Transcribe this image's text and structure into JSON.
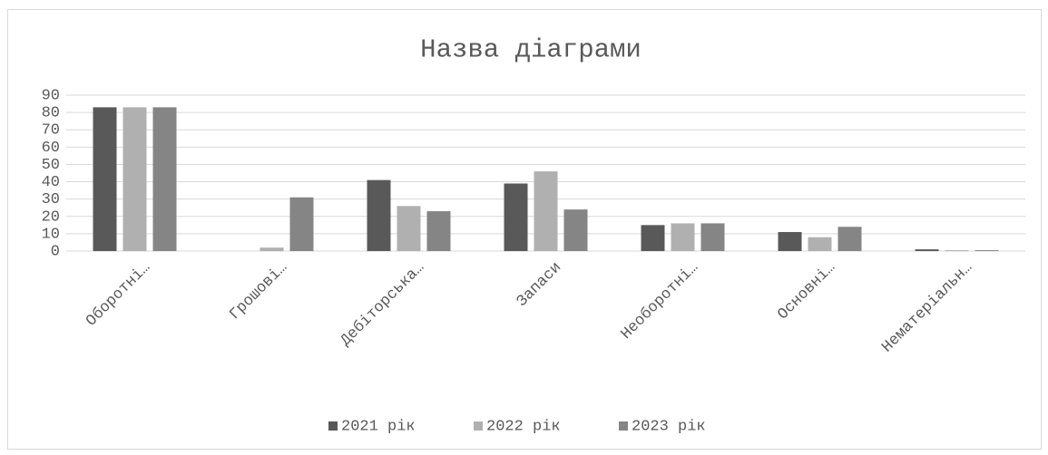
{
  "chart_data": {
    "type": "bar",
    "title": "Назва діаграми",
    "categories": [
      "Оборотні…",
      "Грошові…",
      "Дебіторська…",
      "Запаси",
      "Необоротні…",
      "Основні…",
      "Нематеріальн…"
    ],
    "series": [
      {
        "name": "2021 рік",
        "color": "#595959",
        "values": [
          83,
          0,
          41,
          39,
          15,
          11,
          1
        ]
      },
      {
        "name": "2022 рік",
        "color": "#b0b0b0",
        "values": [
          83,
          2,
          26,
          46,
          16,
          8,
          0.5
        ]
      },
      {
        "name": "2023 рік",
        "color": "#858585",
        "values": [
          83,
          31,
          23,
          24,
          16,
          14,
          0.5
        ]
      }
    ],
    "ylim": [
      0,
      90
    ],
    "yticks": [
      0,
      10,
      20,
      30,
      40,
      50,
      60,
      70,
      80,
      90
    ],
    "grid": true,
    "legend": "bottom"
  }
}
